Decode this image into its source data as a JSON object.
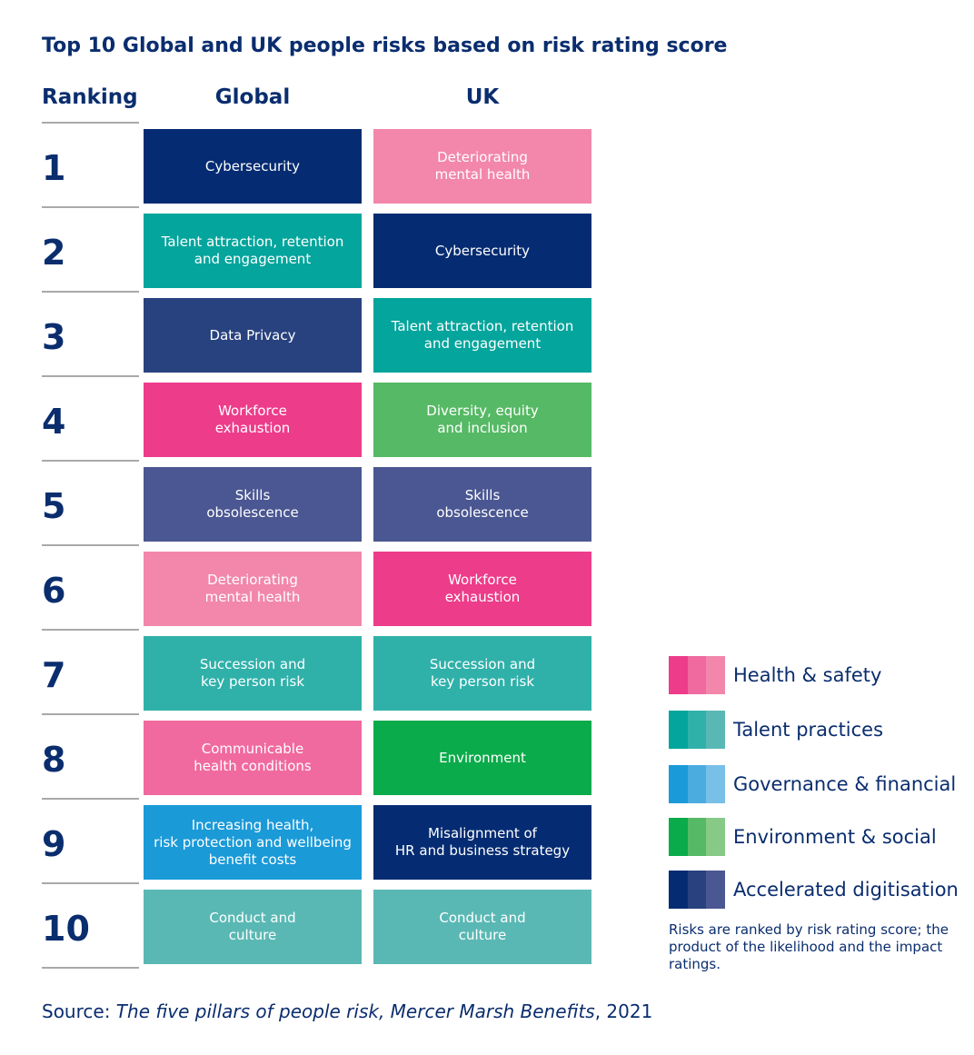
{
  "title": "Top 10 Global and UK people risks based on risk rating score",
  "headers": {
    "ranking": "Ranking",
    "global": "Global",
    "uk": "UK"
  },
  "colors": {
    "accent_text": "#0a2d6e",
    "health_safety": [
      "#ed3c8a",
      "#f06a9f",
      "#f287ab"
    ],
    "talent": [
      "#03a59c",
      "#2fb1aa",
      "#5ab8b4"
    ],
    "governance": [
      "#1b9ad8",
      "#4aacdf",
      "#79c0e8"
    ],
    "environment": [
      "#0aab4a",
      "#56b965",
      "#87c987"
    ],
    "digitisation": [
      "#052c72",
      "#28427f",
      "#4b5792"
    ]
  },
  "rows": [
    {
      "rank": "1",
      "global": "Cybersecurity",
      "global_color": "#052c72",
      "uk": "Deteriorating\nmental health",
      "uk_color": "#f287ab"
    },
    {
      "rank": "2",
      "global": "Talent attraction, retention\nand engagement",
      "global_color": "#03a59c",
      "uk": "Cybersecurity",
      "uk_color": "#052c72"
    },
    {
      "rank": "3",
      "global": "Data Privacy",
      "global_color": "#28427f",
      "uk": "Talent attraction, retention\nand engagement",
      "uk_color": "#03a59c"
    },
    {
      "rank": "4",
      "global": "Workforce\nexhaustion",
      "global_color": "#ed3c8a",
      "uk": "Diversity, equity\nand inclusion",
      "uk_color": "#56b965"
    },
    {
      "rank": "5",
      "global": "Skills\nobsolescence",
      "global_color": "#4b5792",
      "uk": "Skills\nobsolescence",
      "uk_color": "#4b5792"
    },
    {
      "rank": "6",
      "global": "Deteriorating\nmental health",
      "global_color": "#f287ab",
      "uk": "Workforce\nexhaustion",
      "uk_color": "#ed3c8a"
    },
    {
      "rank": "7",
      "global": "Succession and\nkey person risk",
      "global_color": "#2fb1aa",
      "uk": "Succession and\nkey person risk",
      "uk_color": "#2fb1aa"
    },
    {
      "rank": "8",
      "global": "Communicable\nhealth conditions",
      "global_color": "#f06a9f",
      "uk": "Environment",
      "uk_color": "#0aab4a"
    },
    {
      "rank": "9",
      "global": "Increasing health,\nrisk protection  and wellbeing\nbenefit costs",
      "global_color": "#1b9ad8",
      "uk": "Misalignment of\nHR and business strategy",
      "uk_color": "#052c72"
    },
    {
      "rank": "10",
      "global": "Conduct and\nculture",
      "global_color": "#5ab8b4",
      "uk": "Conduct and\nculture",
      "uk_color": "#5ab8b4"
    }
  ],
  "legend": {
    "items": [
      {
        "label": "Health & safety",
        "colors": [
          "#ed3c8a",
          "#f06a9f",
          "#f287ab"
        ]
      },
      {
        "label": "Talent practices",
        "colors": [
          "#03a59c",
          "#2fb1aa",
          "#5ab8b4"
        ]
      },
      {
        "label": "Governance & financial",
        "colors": [
          "#1b9ad8",
          "#4aacdf",
          "#79c0e8"
        ]
      },
      {
        "label": "Environment & social",
        "colors": [
          "#0aab4a",
          "#56b965",
          "#87c987"
        ]
      },
      {
        "label": "Accelerated digitisation",
        "colors": [
          "#052c72",
          "#28427f",
          "#4b5792"
        ]
      }
    ],
    "note": "Risks are ranked by risk rating score; the product of the likelihood and the impact ratings."
  },
  "source": {
    "prefix": "Source: ",
    "italic": "The five pillars of people risk, Mercer Marsh Benefits",
    "suffix": ", 2021"
  }
}
